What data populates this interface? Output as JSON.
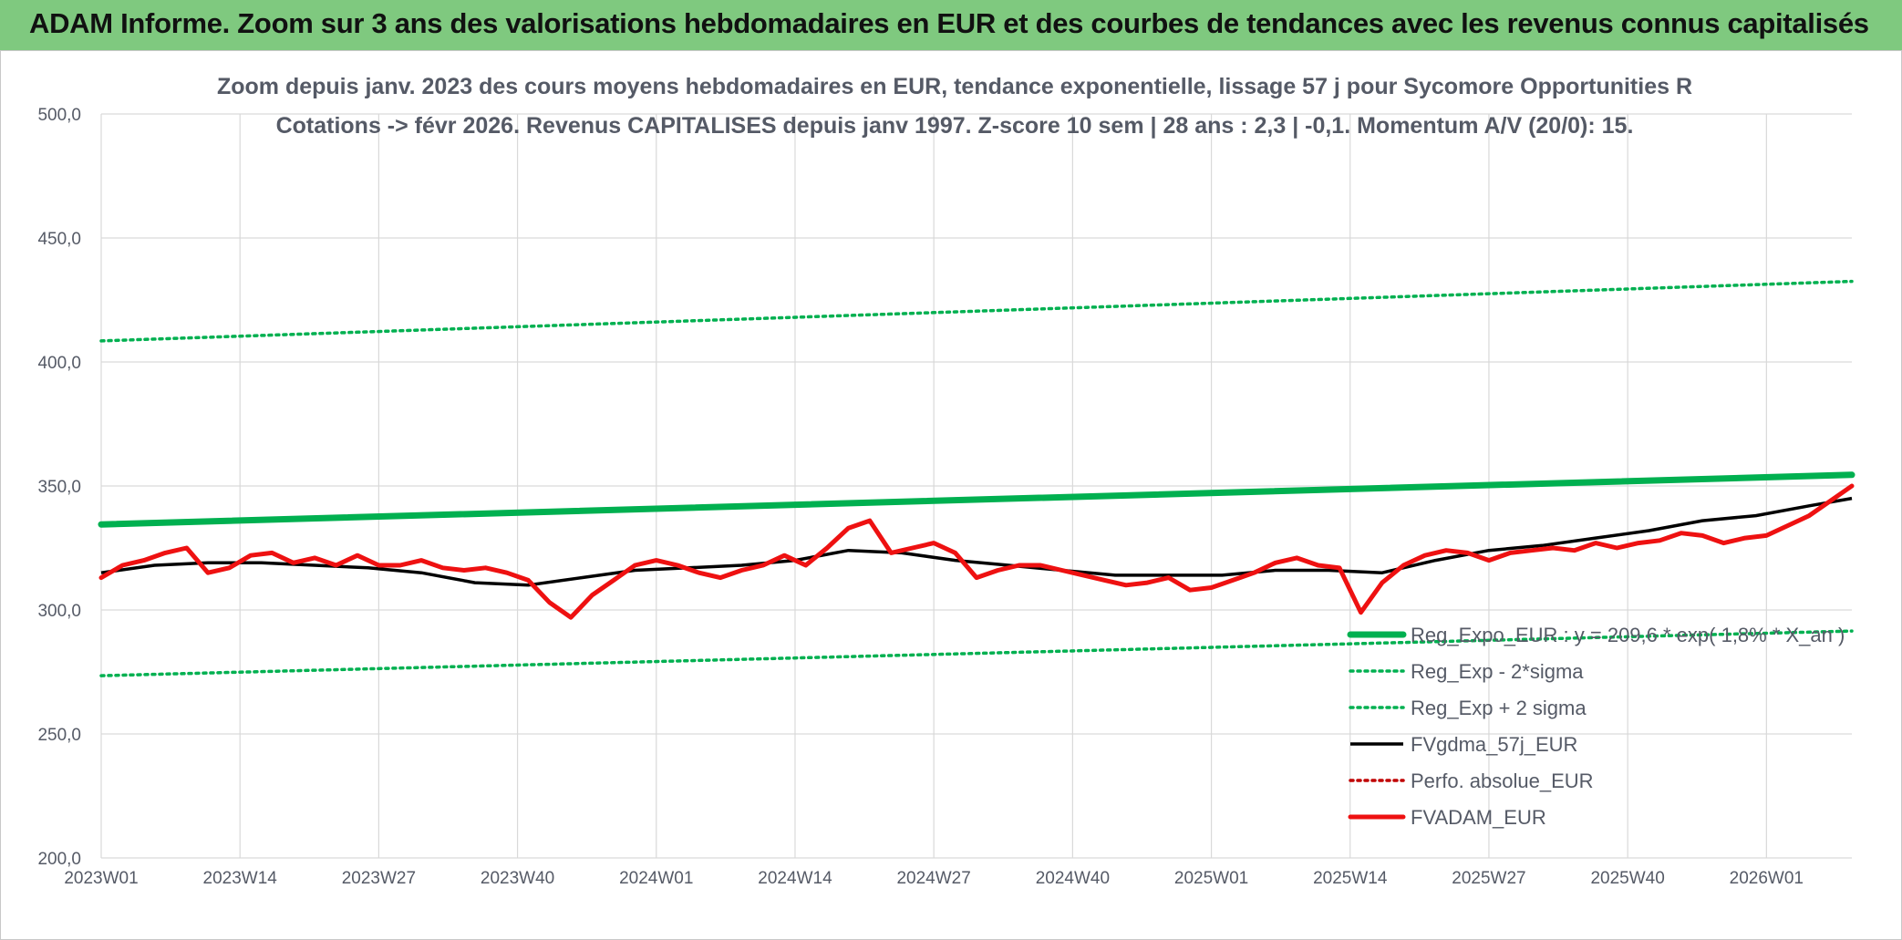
{
  "header": {
    "title": "ADAM Informe. Zoom sur 3 ans des valorisations hebdomadaires en EUR et des courbes de tendances avec les revenus connus capitalisés"
  },
  "chart_data": {
    "type": "line",
    "title": "Zoom depuis janv. 2023 des cours moyens hebdomadaires en EUR, tendance exponentielle, lissage 57 j pour Sycomore Opportunities R",
    "subtitle": "Cotations -> févr 2026. Revenus CAPITALISES depuis janv 1997. Z-score 10 sem | 28 ans : 2,3 | -0,1. Momentum A/V (20/0): 15.",
    "xlabel": "",
    "ylabel": "",
    "x_ticks": [
      "2023W01",
      "2023W14",
      "2023W27",
      "2023W40",
      "2024W01",
      "2024W14",
      "2024W27",
      "2024W40",
      "2025W01",
      "2025W14",
      "2025W27",
      "2025W40",
      "2026W01"
    ],
    "y_ticks": [
      "200,0",
      "250,0",
      "300,0",
      "350,0",
      "400,0",
      "450,0",
      "500,0"
    ],
    "ylim": [
      200,
      500
    ],
    "xlim": [
      0,
      164
    ],
    "grid": true,
    "legend_position": "bottom-right",
    "legend": [
      "Reg_Expo_EUR : y = 209,6 * exp( 1,8% * X_an )",
      "Reg_Exp - 2*sigma",
      "Reg_Exp + 2 sigma",
      "FVgdma_57j_EUR",
      "Perfo. absolue_EUR",
      "FVADAM_EUR"
    ],
    "series": [
      {
        "name": "Reg_Expo_EUR : y = 209,6 * exp( 1,8% * X_an )",
        "style": "solid-thick",
        "color": "#00b050",
        "x": [
          0,
          164
        ],
        "values": [
          334.5,
          354.5
        ]
      },
      {
        "name": "Reg_Exp - 2*sigma",
        "style": "dotted",
        "color": "#00b050",
        "x": [
          0,
          164
        ],
        "values": [
          273.5,
          291.5
        ]
      },
      {
        "name": "Reg_Exp + 2 sigma",
        "style": "dotted",
        "color": "#00b050",
        "x": [
          0,
          164
        ],
        "values": [
          408.5,
          432.5
        ]
      },
      {
        "name": "FVgdma_57j_EUR",
        "style": "solid",
        "color": "#000000",
        "x": [
          0,
          5,
          10,
          15,
          20,
          25,
          30,
          35,
          40,
          45,
          50,
          55,
          60,
          65,
          70,
          75,
          80,
          85,
          90,
          95,
          100,
          105,
          110,
          115,
          120,
          125,
          130,
          135,
          140,
          145,
          150,
          155,
          160,
          164
        ],
        "values": [
          315,
          318,
          319,
          319,
          318,
          317,
          315,
          311,
          310,
          313,
          316,
          317,
          318,
          320,
          324,
          323,
          320,
          318,
          316,
          314,
          314,
          314,
          316,
          316,
          315,
          320,
          324,
          326,
          329,
          332,
          336,
          338,
          342,
          345
        ]
      },
      {
        "name": "Perfo. absolue_EUR",
        "style": "dotted",
        "color": "#c00000",
        "x": [],
        "values": []
      },
      {
        "name": "FVADAM_EUR",
        "style": "solid-thick",
        "color": "#ee1111",
        "x": [
          0,
          2,
          4,
          6,
          8,
          10,
          12,
          14,
          16,
          18,
          20,
          22,
          24,
          26,
          28,
          30,
          32,
          34,
          36,
          38,
          40,
          42,
          44,
          46,
          48,
          50,
          52,
          54,
          56,
          58,
          60,
          62,
          64,
          66,
          68,
          70,
          72,
          74,
          76,
          78,
          80,
          82,
          84,
          86,
          88,
          90,
          92,
          94,
          96,
          98,
          100,
          102,
          104,
          106,
          108,
          110,
          112,
          114,
          116,
          118,
          120,
          122,
          124,
          126,
          128,
          130,
          132,
          134,
          136,
          138,
          140,
          142,
          144,
          146,
          148,
          150,
          152,
          154,
          156,
          158,
          160,
          162,
          164
        ],
        "values": [
          313,
          318,
          320,
          323,
          325,
          315,
          317,
          322,
          323,
          319,
          321,
          318,
          322,
          318,
          318,
          320,
          317,
          316,
          317,
          315,
          312,
          303,
          297,
          306,
          312,
          318,
          320,
          318,
          315,
          313,
          316,
          318,
          322,
          318,
          325,
          333,
          336,
          323,
          325,
          327,
          323,
          313,
          316,
          318,
          318,
          316,
          314,
          312,
          310,
          311,
          313,
          308,
          309,
          312,
          315,
          319,
          321,
          318,
          317,
          299,
          311,
          318,
          322,
          324,
          323,
          320,
          323,
          324,
          325,
          324,
          327,
          325,
          327,
          328,
          331,
          330,
          327,
          329,
          330,
          334,
          338,
          344,
          350
        ]
      }
    ]
  }
}
